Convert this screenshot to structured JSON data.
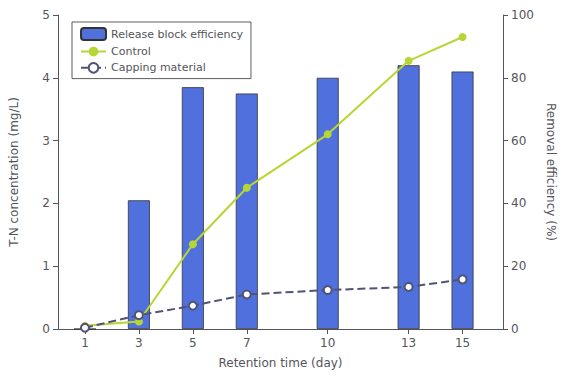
{
  "chart_data": {
    "type": "combo",
    "x": [
      1,
      3,
      5,
      7,
      10,
      13,
      15
    ],
    "xlabel": "Retention time (day)",
    "ylabel": "T-N concentration (mg/L)",
    "y2label": "Removal efficiency (%)",
    "xlim": [
      0.0,
      16.5
    ],
    "xticks": [
      1,
      3,
      5,
      7,
      10,
      13,
      15
    ],
    "ylim": [
      0,
      5
    ],
    "yticks": [
      0,
      1,
      2,
      3,
      4,
      5
    ],
    "y2lim": [
      0,
      100
    ],
    "y2ticks": [
      0,
      20,
      40,
      60,
      80,
      100
    ],
    "grid": false,
    "legend": "upper left",
    "series": [
      {
        "name": "Release block efficiency",
        "type": "bar",
        "axis": "y2",
        "values": [
          0,
          41,
          77,
          75,
          80,
          84,
          82
        ]
      },
      {
        "name": "Control",
        "type": "line",
        "marker": "circle",
        "line_style": "solid",
        "values": [
          0.05,
          0.12,
          1.35,
          2.25,
          3.1,
          4.27,
          4.65
        ]
      },
      {
        "name": "Capping material",
        "type": "line",
        "marker": "open circle",
        "line_style": "dashed",
        "values": [
          0.02,
          0.22,
          0.37,
          0.55,
          0.62,
          0.67,
          0.79
        ]
      }
    ]
  }
}
